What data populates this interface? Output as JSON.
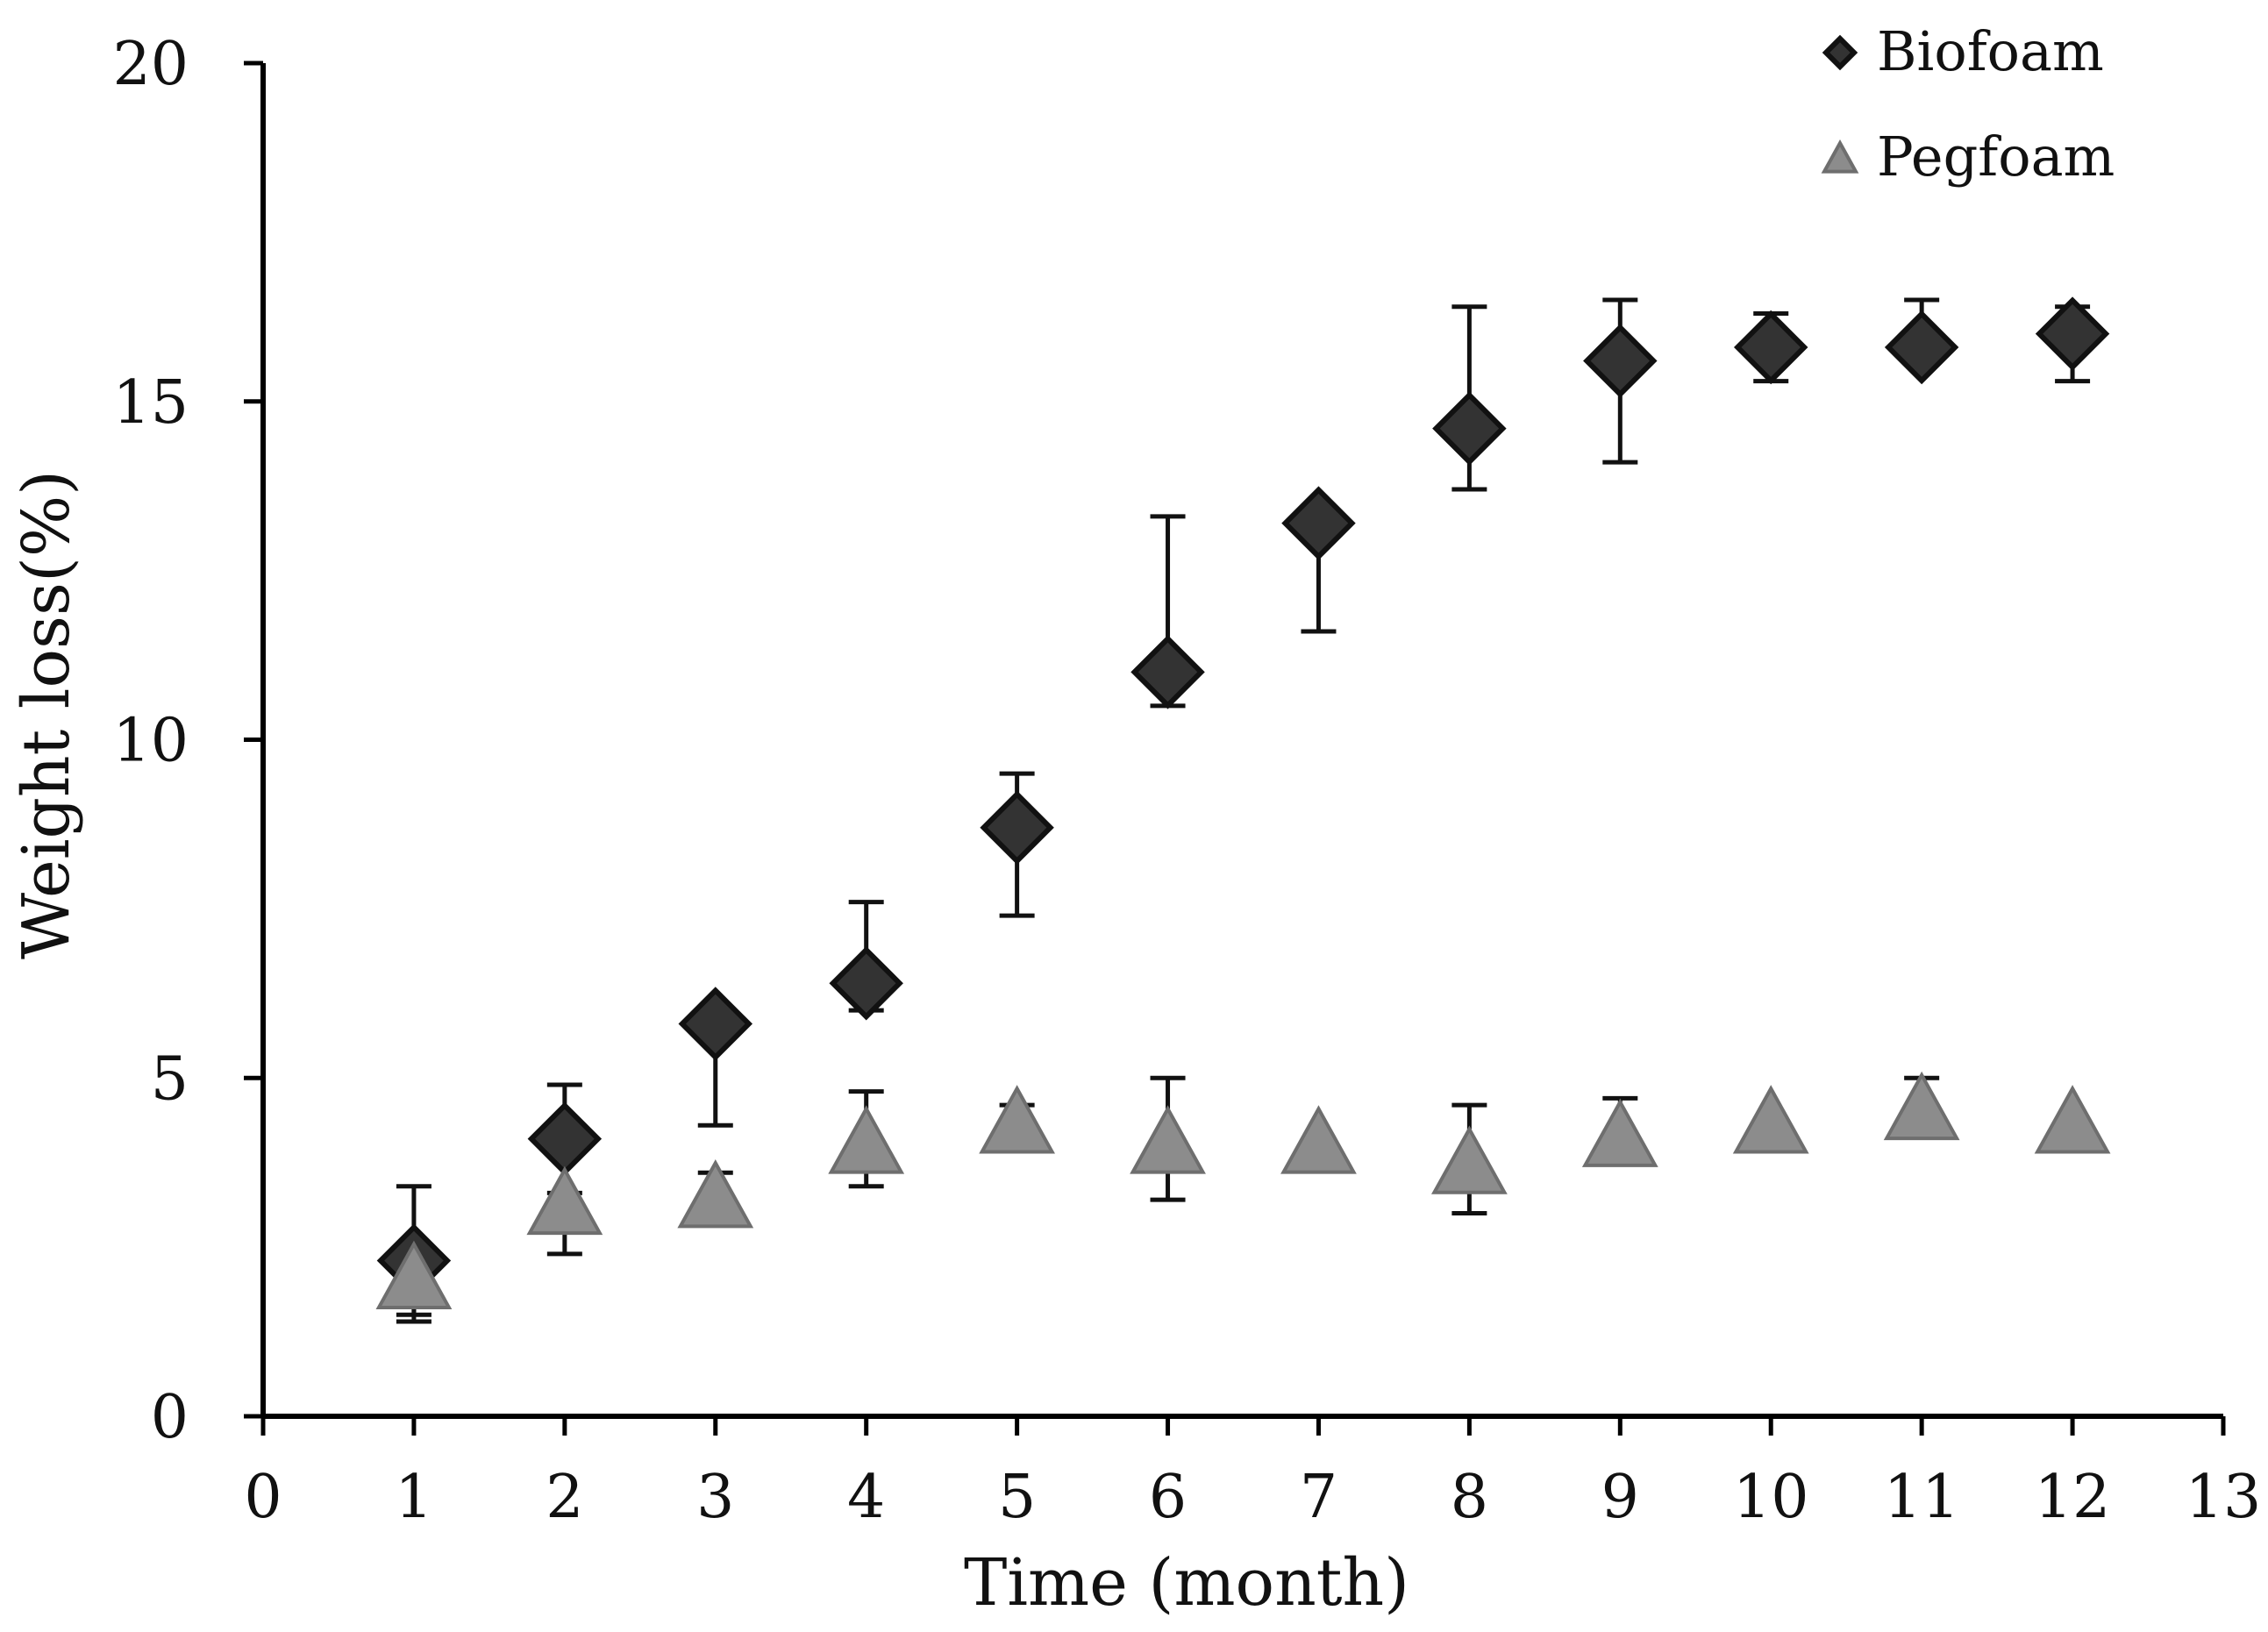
{
  "chart_data": {
    "type": "scatter",
    "title": "",
    "xlabel": "Time (month)",
    "ylabel": "Weight loss(%)",
    "xlim": [
      0,
      13
    ],
    "ylim": [
      0,
      20
    ],
    "xticks": [
      "0",
      "1",
      "2",
      "3",
      "4",
      "5",
      "6",
      "7",
      "8",
      "9",
      "10",
      "11",
      "12",
      "13"
    ],
    "yticks": [
      "0",
      "5",
      "10",
      "15",
      "20"
    ],
    "grid": false,
    "legend_position": "top-right",
    "series": [
      {
        "name": "Biofoam",
        "marker": "diamond",
        "color": "#333333",
        "x": [
          1,
          2,
          3,
          4,
          5,
          6,
          7,
          8,
          9,
          10,
          11,
          12
        ],
        "y": [
          2.3,
          4.1,
          5.8,
          6.4,
          8.7,
          11.0,
          13.2,
          14.6,
          15.6,
          15.8,
          15.8,
          16.0
        ],
        "err_low": [
          1.5,
          3.3,
          4.3,
          6.0,
          7.4,
          10.5,
          11.6,
          13.7,
          14.1,
          15.3,
          15.8,
          15.3
        ],
        "err_high": [
          3.4,
          4.9,
          5.8,
          7.6,
          9.5,
          13.3,
          13.2,
          16.4,
          16.5,
          16.3,
          16.5,
          16.4
        ]
      },
      {
        "name": "Pegfoam",
        "marker": "triangle",
        "color": "#8c8c8c",
        "x": [
          1,
          2,
          3,
          4,
          5,
          6,
          7,
          8,
          9,
          10,
          11,
          12
        ],
        "y": [
          2.0,
          3.1,
          3.2,
          4.0,
          4.3,
          4.0,
          4.0,
          3.7,
          4.1,
          4.3,
          4.5,
          4.3
        ],
        "err_low": [
          1.4,
          2.4,
          3.2,
          3.4,
          4.3,
          3.2,
          4.0,
          3.0,
          3.8,
          4.3,
          4.5,
          4.3
        ],
        "err_high": [
          2.0,
          3.1,
          3.6,
          4.8,
          4.6,
          5.0,
          4.0,
          4.6,
          4.7,
          4.3,
          5.0,
          4.3
        ]
      }
    ]
  }
}
